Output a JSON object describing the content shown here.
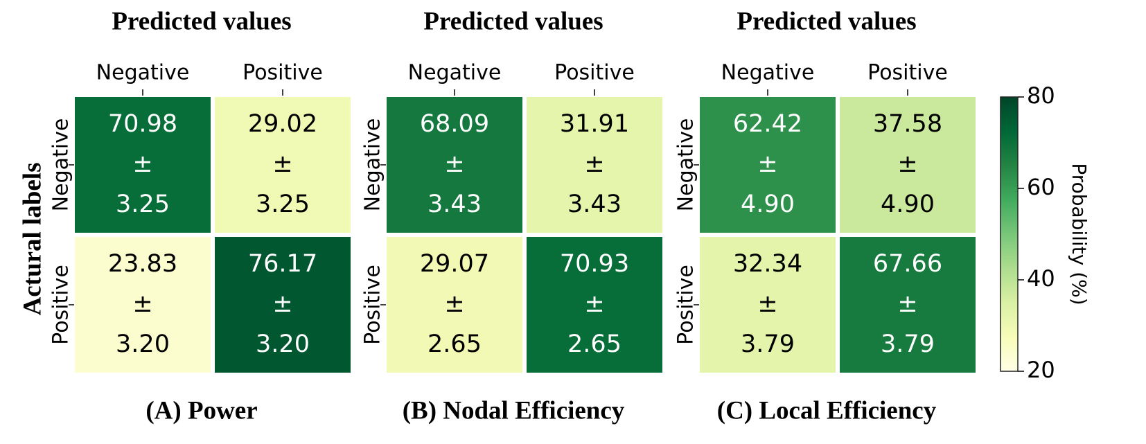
{
  "chart_data": {
    "type": "heatmap",
    "y_axis_title": "Actural labels",
    "colorbar": {
      "label": "Probability (%)",
      "min": 20,
      "max": 80,
      "ticks": [
        "20",
        "40",
        "60",
        "80"
      ],
      "colormap": [
        "#ffffe5",
        "#f7fcb9",
        "#d9f0a3",
        "#addd8e",
        "#78c679",
        "#41ab5d",
        "#238443",
        "#006837",
        "#004529"
      ]
    },
    "panels": [
      {
        "top_title": "Predicted values",
        "caption": "(A) Power",
        "col_labels": [
          "Negative",
          "Positive"
        ],
        "row_labels": [
          "Negative",
          "Positive"
        ],
        "values": [
          [
            70.98,
            29.02
          ],
          [
            23.83,
            76.17
          ]
        ],
        "cells": [
          [
            {
              "mean": "70.98",
              "pm": "±",
              "sd": "3.25"
            },
            {
              "mean": "29.02",
              "pm": "±",
              "sd": "3.25"
            }
          ],
          [
            {
              "mean": "23.83",
              "pm": "±",
              "sd": "3.20"
            },
            {
              "mean": "76.17",
              "pm": "±",
              "sd": "3.20"
            }
          ]
        ]
      },
      {
        "top_title": "Predicted values",
        "caption": "(B) Nodal Efficiency",
        "col_labels": [
          "Negative",
          "Positive"
        ],
        "row_labels": [
          "Negative",
          "Positive"
        ],
        "values": [
          [
            68.09,
            31.91
          ],
          [
            29.07,
            70.93
          ]
        ],
        "cells": [
          [
            {
              "mean": "68.09",
              "pm": "±",
              "sd": "3.43"
            },
            {
              "mean": "31.91",
              "pm": "±",
              "sd": "3.43"
            }
          ],
          [
            {
              "mean": "29.07",
              "pm": "±",
              "sd": "2.65"
            },
            {
              "mean": "70.93",
              "pm": "±",
              "sd": "2.65"
            }
          ]
        ]
      },
      {
        "top_title": "Predicted values",
        "caption": "(C) Local Efficiency",
        "col_labels": [
          "Negative",
          "Positive"
        ],
        "row_labels": [
          "Negative",
          "Positive"
        ],
        "values": [
          [
            62.42,
            37.58
          ],
          [
            32.34,
            67.66
          ]
        ],
        "cells": [
          [
            {
              "mean": "62.42",
              "pm": "±",
              "sd": "4.90"
            },
            {
              "mean": "37.58",
              "pm": "±",
              "sd": "4.90"
            }
          ],
          [
            {
              "mean": "32.34",
              "pm": "±",
              "sd": "3.79"
            },
            {
              "mean": "67.66",
              "pm": "±",
              "sd": "3.79"
            }
          ]
        ]
      }
    ]
  }
}
